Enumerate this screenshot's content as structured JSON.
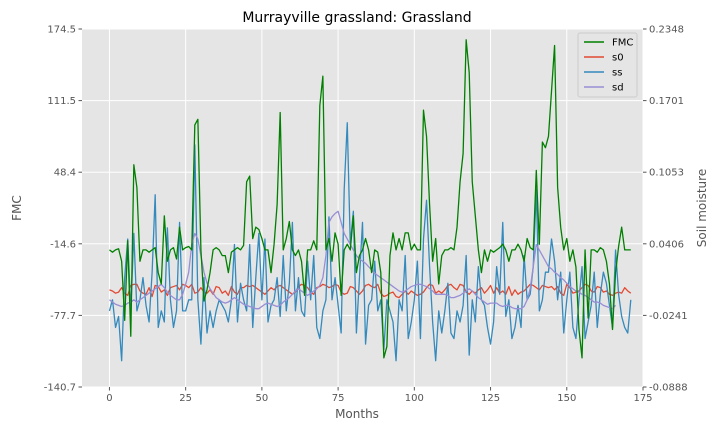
{
  "chart_data": {
    "type": "line",
    "title": "Murrayville grassland: Grassland",
    "xlabel": "Months",
    "ylabel_left": "FMC",
    "ylabel_right": "Soil moisture",
    "xlim": [
      -9,
      175
    ],
    "xticks": [
      0,
      25,
      50,
      75,
      100,
      125,
      150,
      175
    ],
    "xtick_labels": [
      "0",
      "25",
      "50",
      "75",
      "100",
      "125",
      "150",
      "175"
    ],
    "ylim_left": [
      -140.7,
      174.5
    ],
    "yticks_left": [
      "174.5",
      "111.5",
      "48.4",
      "-14.6",
      "-77.7",
      "-140.7"
    ],
    "ylim_right": [
      -0.0888,
      0.2348
    ],
    "yticks_right": [
      "0.2348",
      "0.1701",
      "0.1053",
      "0.0406",
      "-0.0241",
      "-0.0888"
    ],
    "grid": true,
    "legend_position": "top-right",
    "series": [
      {
        "name": "FMC",
        "axis": "left",
        "color": "#008000",
        "values": [
          -20,
          -22,
          -20,
          -19,
          -30,
          -82,
          -12,
          -96,
          55,
          35,
          -30,
          -20,
          -20,
          -22,
          -20,
          -18,
          -40,
          -50,
          10,
          -30,
          -20,
          -18,
          -28,
          0,
          -20,
          -18,
          -17,
          -20,
          90,
          95,
          -20,
          -65,
          -55,
          -40,
          -20,
          -18,
          -20,
          -25,
          -25,
          -40,
          -22,
          -20,
          -18,
          -20,
          -16,
          40,
          45,
          -10,
          0,
          -2,
          -10,
          -20,
          -20,
          -40,
          -15,
          20,
          101,
          -20,
          -10,
          5,
          -20,
          -25,
          -20,
          -30,
          -60,
          -20,
          -20,
          -12,
          -20,
          107,
          133,
          -20,
          -10,
          -30,
          -5,
          -15,
          -60,
          -20,
          -15,
          -20,
          10,
          -40,
          -25,
          -20,
          -10,
          -20,
          -40,
          -20,
          -22,
          -40,
          -115,
          -105,
          -25,
          -5,
          -20,
          -10,
          -20,
          -5,
          -5,
          -20,
          -15,
          -20,
          -20,
          103,
          80,
          20,
          -30,
          -10,
          -50,
          -25,
          -20,
          -20,
          -18,
          -20,
          0,
          40,
          65,
          165,
          136,
          40,
          10,
          -20,
          -40,
          -20,
          -30,
          -20,
          -22,
          -20,
          -18,
          -15,
          -20,
          -30,
          -20,
          -20,
          -15,
          -20,
          -30,
          -10,
          -18,
          -20,
          50,
          -15,
          75,
          70,
          80,
          120,
          160,
          35,
          0,
          -20,
          -10,
          -30,
          -20,
          -35,
          -90,
          -115,
          -20,
          -80,
          -20,
          -20,
          -22,
          -18,
          -20,
          -30,
          -50,
          -90,
          -40,
          -17,
          0,
          -20,
          -20,
          -20
        ]
      },
      {
        "name": "s0",
        "axis": "right",
        "color": "#e24a33",
        "values": [
          -0.001,
          -0.002,
          -0.004,
          -0.003,
          0.001,
          -0.004,
          -0.006,
          0.003,
          0.004,
          0.004,
          -0.002,
          -0.004,
          -0.005,
          0.001,
          -0.007,
          0.003,
          0.002,
          -0.003,
          -0.001,
          -0.006,
          0.001,
          0.002,
          0.003,
          -0.001,
          0.004,
          0.003,
          0.001,
          0.004,
          -0.004,
          -0.003,
          0.001,
          -0.003,
          -0.004,
          -0.001,
          -0.005,
          0.002,
          0.001,
          -0.004,
          -0.002,
          -0.006,
          0.002,
          -0.003,
          -0.005,
          0.001,
          0.001,
          0.003,
          0.002,
          0.003,
          0.001,
          -0.001,
          -0.003,
          -0.005,
          -0.002,
          0.001,
          -0.001,
          0.002,
          0.003,
          0.001,
          -0.001,
          -0.003,
          -0.005,
          -0.003,
          0.002,
          0.004,
          0.003,
          0.001,
          -0.003,
          -0.005,
          0.001,
          0.002,
          0.004,
          0.003,
          0.001,
          0.002,
          0.004,
          0.003,
          -0.003,
          -0.005,
          -0.004,
          0.002,
          0.001,
          -0.002,
          -0.005,
          -0.002,
          0.003,
          0.004,
          0.002,
          0.001,
          0.004,
          -0.004,
          -0.007,
          -0.006,
          -0.004,
          -0.003,
          -0.007,
          -0.008,
          -0.005,
          -0.002,
          -0.005,
          -0.002,
          -0.004,
          -0.006,
          -0.005,
          -0.003,
          0.001,
          0.004,
          0.003,
          -0.004,
          -0.002,
          -0.004,
          -0.001,
          0.003,
          0.004,
          0.001,
          -0.001,
          0.004,
          0.003,
          -0.003,
          -0.005,
          -0.002,
          -0.004,
          -0.001,
          0.001,
          -0.004,
          -0.001,
          0.003,
          -0.004,
          0.001,
          -0.004,
          -0.002,
          -0.005,
          0.002,
          -0.006,
          -0.001,
          -0.005,
          -0.003,
          -0.002,
          0.001,
          0.004,
          0.003,
          0.001,
          -0.001,
          0.003,
          0.002,
          0.001,
          0.002,
          -0.001,
          0.002,
          -0.004,
          -0.006,
          0.004,
          0.001,
          -0.004,
          -0.003,
          -0.002,
          0.001,
          0.004,
          0.003,
          -0.002,
          -0.003,
          0.002,
          0.001,
          -0.003,
          -0.002,
          -0.005,
          -0.006,
          -0.004,
          -0.003,
          -0.004,
          0.001,
          -0.002,
          -0.004
        ]
      },
      {
        "name": "ss",
        "axis": "right",
        "color": "#348abd",
        "values": [
          -0.02,
          -0.01,
          -0.035,
          -0.025,
          -0.065,
          0.01,
          0.045,
          -0.02,
          0.05,
          -0.02,
          -0.01,
          0.01,
          -0.015,
          -0.03,
          0.015,
          0.085,
          -0.035,
          -0.02,
          -0.03,
          0.055,
          -0.01,
          -0.035,
          -0.02,
          0.06,
          -0.02,
          -0.02,
          -0.01,
          -0.01,
          0.13,
          -0.01,
          -0.05,
          0.01,
          -0.04,
          -0.02,
          -0.035,
          -0.02,
          -0.01,
          -0.015,
          -0.02,
          -0.03,
          -0.01,
          0.04,
          -0.03,
          0.005,
          -0.01,
          -0.02,
          0.04,
          -0.035,
          0.01,
          0.05,
          -0.01,
          0.045,
          -0.03,
          -0.015,
          -0.01,
          0.01,
          -0.025,
          0.03,
          -0.02,
          0.005,
          0.06,
          -0.02,
          0.01,
          -0.02,
          -0.025,
          0.025,
          -0.01,
          0.03,
          -0.035,
          -0.045,
          -0.02,
          -0.01,
          0.065,
          -0.01,
          0.01,
          -0.015,
          -0.04,
          0.09,
          0.15,
          0.04,
          0.07,
          -0.04,
          0.01,
          0.06,
          -0.05,
          -0.015,
          -0.01,
          0.025,
          -0.02,
          -0.01,
          -0.055,
          -0.01,
          -0.02,
          -0.03,
          -0.065,
          -0.01,
          -0.02,
          0.03,
          -0.045,
          -0.03,
          -0.01,
          0.025,
          -0.045,
          0.045,
          0.08,
          0.02,
          -0.03,
          -0.065,
          -0.02,
          -0.04,
          -0.02,
          0.005,
          -0.04,
          -0.045,
          -0.02,
          -0.03,
          -0.015,
          0.03,
          -0.06,
          -0.01,
          -0.03,
          0.02,
          -0.01,
          -0.015,
          -0.035,
          -0.05,
          -0.03,
          0.02,
          -0.005,
          0.06,
          -0.025,
          -0.01,
          -0.045,
          -0.035,
          -0.015,
          -0.035,
          0.03,
          -0.01,
          -0.005,
          0.02,
          0.09,
          -0.02,
          -0.01,
          0.015,
          0.015,
          0.045,
          0.025,
          -0.01,
          0.015,
          -0.04,
          -0.01,
          0.015,
          -0.035,
          -0.045,
          -0.01,
          0.02,
          -0.045,
          -0.03,
          -0.015,
          0.015,
          -0.035,
          -0.005,
          0.015,
          0.005,
          -0.015,
          -0.035,
          0.035,
          -0.005,
          -0.025,
          -0.035,
          -0.04,
          -0.01
        ]
      },
      {
        "name": "sd",
        "axis": "right",
        "color": "#988ed5",
        "values": [
          -0.01,
          -0.012,
          -0.014,
          -0.015,
          -0.016,
          -0.015,
          -0.013,
          -0.012,
          -0.01,
          -0.012,
          -0.01,
          -0.008,
          -0.006,
          -0.004,
          -0.002,
          0.0,
          0.002,
          0.004,
          0.001,
          -0.003,
          -0.006,
          -0.008,
          -0.01,
          -0.01,
          -0.005,
          0.004,
          0.015,
          0.04,
          0.05,
          0.045,
          0.03,
          0.015,
          0.005,
          0.0,
          -0.004,
          -0.008,
          -0.01,
          -0.012,
          -0.013,
          -0.012,
          -0.01,
          -0.008,
          -0.01,
          -0.012,
          -0.014,
          -0.015,
          -0.016,
          -0.017,
          -0.018,
          -0.018,
          -0.016,
          -0.014,
          -0.013,
          -0.014,
          -0.015,
          -0.016,
          -0.015,
          -0.012,
          -0.01,
          -0.008,
          -0.005,
          -0.002,
          0.0,
          -0.002,
          -0.004,
          -0.006,
          -0.004,
          -0.002,
          0.0,
          0.003,
          0.01,
          0.03,
          0.06,
          0.065,
          0.068,
          0.07,
          0.06,
          0.05,
          0.045,
          0.04,
          0.035,
          0.03,
          0.027,
          0.025,
          0.023,
          0.02,
          0.017,
          0.014,
          0.012,
          0.01,
          0.008,
          0.006,
          0.004,
          0.002,
          0.0,
          -0.002,
          -0.003,
          -0.002,
          0.0,
          0.002,
          0.003,
          0.004,
          0.004,
          0.003,
          0.002,
          0.0,
          -0.002,
          -0.005,
          -0.005,
          -0.005,
          -0.005,
          -0.006,
          -0.008,
          -0.008,
          -0.007,
          -0.006,
          -0.004,
          -0.002,
          0.0,
          -0.002,
          -0.005,
          -0.008,
          -0.01,
          -0.012,
          -0.014,
          -0.013,
          -0.013,
          -0.013,
          -0.015,
          -0.016,
          -0.015,
          -0.015,
          -0.017,
          -0.018,
          -0.018,
          -0.018,
          -0.016,
          -0.01,
          0.0,
          0.02,
          0.04,
          0.035,
          0.03,
          0.025,
          0.02,
          0.018,
          0.015,
          0.013,
          0.01,
          0.008,
          0.005,
          0.002,
          0.0,
          -0.002,
          -0.003,
          -0.005,
          -0.006,
          -0.008,
          -0.01,
          -0.012,
          -0.012,
          -0.013,
          -0.015,
          -0.016,
          -0.017,
          -0.018,
          -0.015
        ]
      }
    ]
  }
}
